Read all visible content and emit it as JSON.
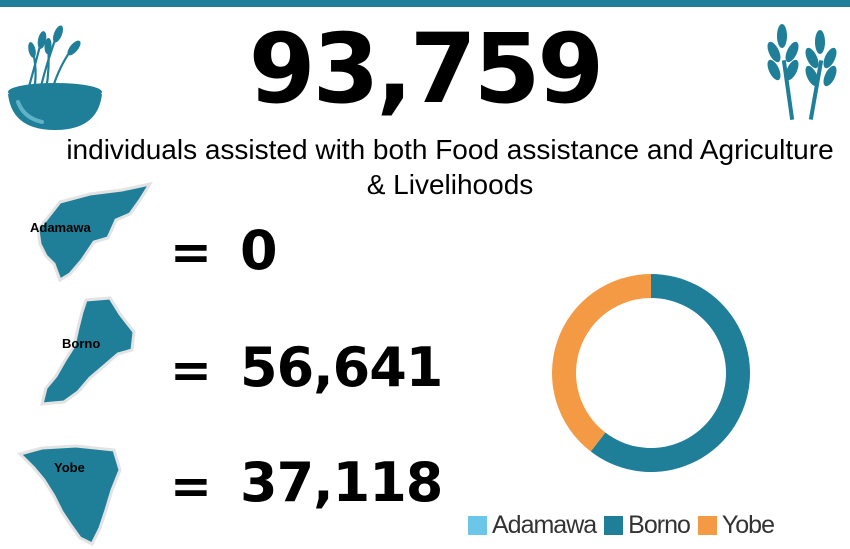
{
  "header": {
    "total": "93,759",
    "subtitle": "individuals assisted with both Food assistance and Agriculture & Livelihoods"
  },
  "icons": [
    "food-bowl-icon",
    "wheat-icon"
  ],
  "states": [
    {
      "name": "Adamawa",
      "equals": "=",
      "value": "0"
    },
    {
      "name": "Borno",
      "equals": "=",
      "value": "56,641"
    },
    {
      "name": "Yobe",
      "equals": "=",
      "value": "37,118"
    }
  ],
  "colors": {
    "accent": "#1f7f99",
    "Adamawa": "#6cc6e8",
    "Borno": "#1f7f99",
    "Yobe": "#f59a44"
  },
  "chart_data": {
    "type": "pie",
    "variant": "donut",
    "categories": [
      "Adamawa",
      "Borno",
      "Yobe"
    ],
    "values": [
      0,
      56641,
      37118
    ],
    "legend": "bottom"
  }
}
